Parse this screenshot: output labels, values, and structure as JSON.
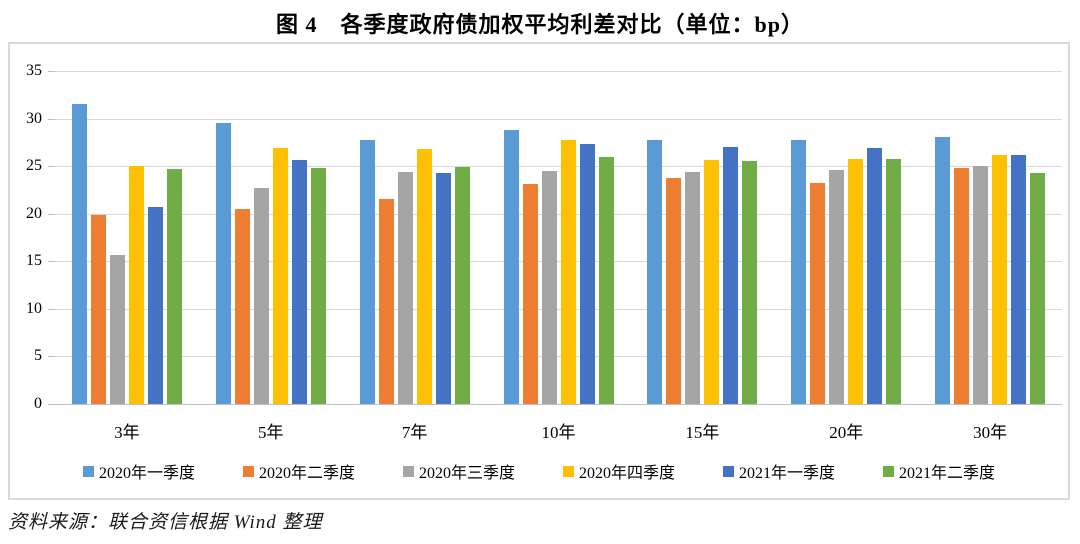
{
  "title": "图 4　各季度政府债加权平均利差对比（单位：bp）",
  "source_note": "资料来源：联合资信根据 Wind 整理",
  "colors": {
    "frame_border": "#d9d9d9",
    "gridline": "#d9d9d9",
    "axis_line": "#bfbfbf",
    "text": "#000000"
  },
  "chart_data": {
    "type": "bar",
    "title": "图 4　各季度政府债加权平均利差对比（单位：bp）",
    "unit": "bp",
    "xlabel": "",
    "ylabel": "",
    "ylim": [
      0,
      35
    ],
    "ytick_step": 5,
    "ytick_labels": [
      "0",
      "5",
      "10",
      "15",
      "20",
      "25",
      "30",
      "35"
    ],
    "grid": true,
    "legend_position": "bottom",
    "categories": [
      "3年",
      "5年",
      "7年",
      "10年",
      "15年",
      "20年",
      "30年"
    ],
    "series": [
      {
        "name": "2020年一季度",
        "color": "#5B9BD5",
        "values": [
          31.5,
          29.5,
          27.7,
          28.8,
          27.7,
          27.7,
          28.1
        ]
      },
      {
        "name": "2020年二季度",
        "color": "#ED7D31",
        "values": [
          19.9,
          20.5,
          21.5,
          23.1,
          23.8,
          23.2,
          24.8
        ]
      },
      {
        "name": "2020年三季度",
        "color": "#A5A5A5",
        "values": [
          15.7,
          22.7,
          24.4,
          24.5,
          24.4,
          24.6,
          25.0
        ]
      },
      {
        "name": "2020年四季度",
        "color": "#FFC000",
        "values": [
          25.0,
          26.9,
          26.8,
          27.7,
          25.6,
          25.8,
          26.2
        ]
      },
      {
        "name": "2021年一季度",
        "color": "#4472C4",
        "values": [
          20.7,
          25.6,
          24.3,
          27.3,
          27.0,
          26.9,
          26.2
        ]
      },
      {
        "name": "2021年二季度",
        "color": "#70AD47",
        "values": [
          24.7,
          24.8,
          24.9,
          26.0,
          25.5,
          25.8,
          24.3
        ]
      }
    ]
  }
}
